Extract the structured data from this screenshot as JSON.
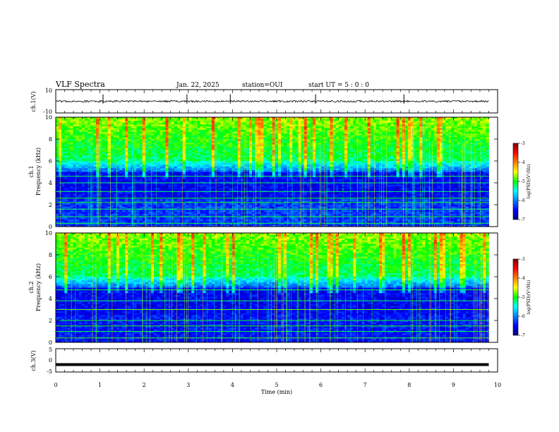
{
  "header": {
    "title": "VLF Spectra",
    "date": "Jan. 22, 2025",
    "station": "station=OUI",
    "start": "start  UT =  5 : 0  : 0"
  },
  "chart_data": [
    {
      "type": "line",
      "name": "ch1-waveform",
      "ylabel": "ch.1(V)",
      "ylim": [
        -10,
        10
      ],
      "yticks": [
        "10",
        "-10"
      ],
      "xlim": [
        0,
        10
      ],
      "baseline": 0,
      "spikes_min": [
        1.07,
        2.97,
        3.95,
        5.88,
        7.88
      ],
      "data_end_min": 9.8
    },
    {
      "type": "heatmap",
      "name": "ch1-spectrogram",
      "ylabel_channel": "ch.1",
      "ylabel": "Frequency (kHz)",
      "ylim": [
        0,
        10
      ],
      "yticks": [
        "0",
        "2",
        "4",
        "6",
        "8",
        "10"
      ],
      "xlim": [
        0,
        10
      ],
      "data_end_min": 9.8,
      "colorbar": {
        "label": "log(PSD)(V²/Hz)",
        "range": [
          -7,
          -3
        ],
        "ticks": [
          "-3",
          "-4",
          "-5",
          "-6",
          "-7"
        ]
      }
    },
    {
      "type": "heatmap",
      "name": "ch2-spectrogram",
      "ylabel_channel": "ch.2",
      "ylabel": "Frequency (kHz)",
      "ylim": [
        0,
        10
      ],
      "yticks": [
        "0",
        "2",
        "4",
        "6",
        "8",
        "10"
      ],
      "xlim": [
        0,
        10
      ],
      "data_end_min": 9.8,
      "colorbar": {
        "label": "log(PSD)(V²/Hz)",
        "range": [
          -7,
          -3
        ],
        "ticks": [
          "-3",
          "-4",
          "-5",
          "-6",
          "-7"
        ]
      }
    },
    {
      "type": "line",
      "name": "ch3-waveform",
      "ylabel": "ch.3(V)",
      "ylim": [
        -5,
        5
      ],
      "yticks": [
        "5",
        "0",
        "-5"
      ],
      "xlim": [
        0,
        10
      ],
      "constant_value": -1.8,
      "data_end_min": 9.8
    }
  ],
  "xaxis": {
    "label": "Time (min)",
    "ticks": [
      "0",
      "1",
      "2",
      "3",
      "4",
      "5",
      "6",
      "7",
      "8",
      "9",
      "10"
    ]
  },
  "colors": {
    "colormap": [
      "#00007f",
      "#0000ff",
      "#00ffff",
      "#00ff00",
      "#ffff00",
      "#ff0000",
      "#7f0000"
    ]
  }
}
